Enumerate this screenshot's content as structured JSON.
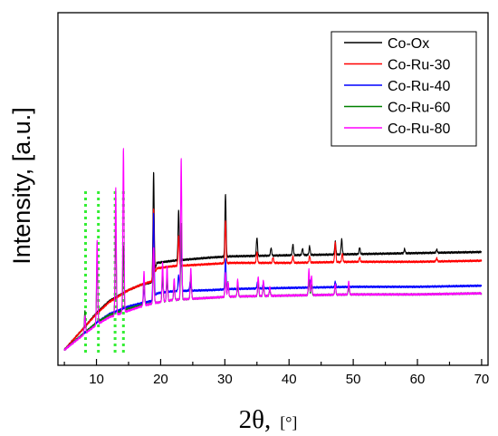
{
  "chart_data": {
    "type": "line",
    "title": "",
    "xlabel": "2θ,",
    "xunit": "[°]",
    "ylabel": "Intensity, [a.u.]",
    "xlim": [
      4,
      71
    ],
    "xticks": [
      10,
      20,
      30,
      40,
      50,
      60,
      70
    ],
    "y_ticks_shown": false,
    "legend_position": "top-right",
    "marker_lines": {
      "color": "#33ee33",
      "style": "dotted",
      "x": [
        8.3,
        10.3,
        12.9,
        14.2
      ]
    },
    "series": [
      {
        "name": "Co-Ox",
        "color": "#000000",
        "background": [
          [
            5,
            0
          ],
          [
            8,
            20
          ],
          [
            10,
            34
          ],
          [
            12,
            45
          ],
          [
            15,
            55
          ],
          [
            17,
            60
          ],
          [
            18.6,
            62
          ],
          [
            19.4,
            80
          ],
          [
            22,
            82
          ],
          [
            28,
            85
          ],
          [
            31,
            86
          ],
          [
            40,
            87
          ],
          [
            50,
            88
          ],
          [
            60,
            89
          ],
          [
            70,
            90
          ]
        ],
        "peaks": [
          [
            18.9,
            95
          ],
          [
            22.8,
            46
          ],
          [
            30.1,
            58
          ],
          [
            35.0,
            17
          ],
          [
            37.2,
            7
          ],
          [
            40.6,
            10
          ],
          [
            42.1,
            6
          ],
          [
            43.2,
            8
          ],
          [
            47.2,
            12
          ],
          [
            48.2,
            14
          ],
          [
            51,
            6
          ],
          [
            58,
            4
          ],
          [
            63,
            3
          ]
        ]
      },
      {
        "name": "Co-Ru-30",
        "color": "#ff0000",
        "background": [
          [
            5,
            0
          ],
          [
            8,
            20
          ],
          [
            10,
            33
          ],
          [
            12,
            44
          ],
          [
            15,
            55
          ],
          [
            17,
            60
          ],
          [
            18.6,
            63
          ],
          [
            19.4,
            75
          ],
          [
            22,
            77
          ],
          [
            28,
            79
          ],
          [
            31,
            80
          ],
          [
            40,
            80
          ],
          [
            50,
            81
          ],
          [
            60,
            81
          ],
          [
            70,
            82
          ]
        ],
        "peaks": [
          [
            18.9,
            62
          ],
          [
            22.8,
            28
          ],
          [
            30.1,
            40
          ],
          [
            35.0,
            10
          ],
          [
            37.5,
            5
          ],
          [
            40.6,
            6
          ],
          [
            43.2,
            6
          ],
          [
            47.2,
            18
          ],
          [
            48.3,
            8
          ],
          [
            51,
            4
          ],
          [
            63,
            3
          ]
        ]
      },
      {
        "name": "Co-Ru-40",
        "color": "#0000ff",
        "background": [
          [
            5,
            0
          ],
          [
            8,
            15
          ],
          [
            10,
            25
          ],
          [
            12,
            33
          ],
          [
            15,
            40
          ],
          [
            17,
            43
          ],
          [
            18.6,
            45
          ],
          [
            19.4,
            52
          ],
          [
            22,
            54
          ],
          [
            28,
            55
          ],
          [
            31,
            56
          ],
          [
            40,
            57
          ],
          [
            50,
            58
          ],
          [
            60,
            58
          ],
          [
            70,
            59
          ]
        ],
        "peaks": [
          [
            17.4,
            12
          ],
          [
            18.9,
            78
          ],
          [
            20.3,
            10
          ],
          [
            21.0,
            8
          ],
          [
            22.8,
            15
          ],
          [
            23.2,
            45
          ],
          [
            24.6,
            8
          ],
          [
            30.1,
            28
          ],
          [
            35.1,
            6
          ],
          [
            36,
            5
          ],
          [
            43.2,
            8
          ],
          [
            47.2,
            5
          ]
        ]
      },
      {
        "name": "Co-Ru-60",
        "color": "#008000",
        "background": [
          [
            5,
            0
          ],
          [
            8,
            15
          ],
          [
            10,
            25
          ],
          [
            12,
            32
          ],
          [
            15,
            38
          ],
          [
            17,
            41
          ],
          [
            19,
            43
          ],
          [
            22,
            46
          ],
          [
            28,
            48
          ],
          [
            31,
            49
          ],
          [
            40,
            50
          ],
          [
            50,
            51
          ],
          [
            60,
            51
          ],
          [
            70,
            52
          ]
        ],
        "peaks": [
          [
            8.2,
            20
          ],
          [
            10.1,
            60
          ],
          [
            13.0,
            78
          ],
          [
            14.2,
            60
          ],
          [
            17.4,
            26
          ],
          [
            18.9,
            38
          ],
          [
            20.3,
            28
          ],
          [
            21.0,
            22
          ],
          [
            22.1,
            14
          ],
          [
            23.2,
            70
          ],
          [
            24.7,
            24
          ],
          [
            30.1,
            20
          ],
          [
            30.5,
            14
          ],
          [
            32,
            10
          ],
          [
            35.2,
            12
          ],
          [
            36,
            10
          ],
          [
            37,
            6
          ],
          [
            43.1,
            14
          ],
          [
            43.5,
            10
          ],
          [
            47.2,
            8
          ],
          [
            49.3,
            7
          ]
        ]
      },
      {
        "name": "Co-Ru-80",
        "color": "#ff00ff",
        "background": [
          [
            5,
            0
          ],
          [
            8,
            14
          ],
          [
            10,
            23
          ],
          [
            12,
            30
          ],
          [
            15,
            36
          ],
          [
            17,
            40
          ],
          [
            19,
            43
          ],
          [
            22,
            46
          ],
          [
            28,
            48
          ],
          [
            31,
            49
          ],
          [
            40,
            50
          ],
          [
            50,
            51
          ],
          [
            60,
            51
          ],
          [
            70,
            52
          ]
        ],
        "peaks": [
          [
            8.2,
            16
          ],
          [
            10.1,
            78
          ],
          [
            13.0,
            118
          ],
          [
            14.2,
            152
          ],
          [
            17.4,
            32
          ],
          [
            18.9,
            52
          ],
          [
            20.3,
            36
          ],
          [
            21.0,
            32
          ],
          [
            22.1,
            20
          ],
          [
            23.2,
            130
          ],
          [
            24.7,
            28
          ],
          [
            30.1,
            22
          ],
          [
            30.5,
            14
          ],
          [
            32,
            16
          ],
          [
            35.2,
            18
          ],
          [
            36,
            14
          ],
          [
            37,
            8
          ],
          [
            43.1,
            24
          ],
          [
            43.5,
            18
          ],
          [
            47.2,
            10
          ],
          [
            49.3,
            12
          ]
        ]
      }
    ]
  }
}
